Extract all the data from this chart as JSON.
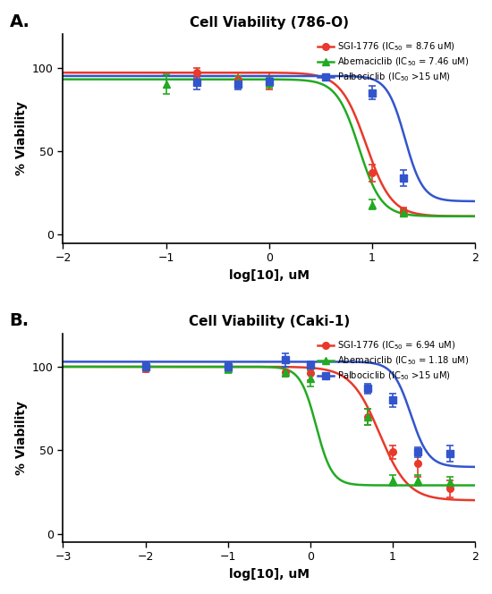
{
  "panel_A": {
    "title": "Cell Viability (786-O)",
    "xlim": [
      -2,
      2
    ],
    "ylim": [
      -5,
      120
    ],
    "xticks": [
      -2,
      -1,
      0,
      1,
      2
    ],
    "yticks": [
      0,
      50,
      100
    ],
    "xlabel": "log[10], uM",
    "ylabel": "% Viability",
    "series": [
      {
        "label": "SGI-1776 (IC$_{50}$ = 8.76 uM)",
        "color": "#e8392a",
        "marker": "o",
        "x": [
          -0.699,
          -0.301,
          0.0,
          1.0,
          1.301
        ],
        "y": [
          97,
          93,
          92,
          37,
          14
        ],
        "yerr": [
          3,
          4,
          5,
          5,
          2
        ],
        "log_ic50": 0.942,
        "hill": 3.5,
        "bottom": 11,
        "top": 97
      },
      {
        "label": "Abemaciclib (IC$_{50}$ = 7.46 uM)",
        "color": "#22aa22",
        "marker": "^",
        "x": [
          -1.0,
          -0.301,
          0.0,
          1.0,
          1.301
        ],
        "y": [
          90,
          92,
          91,
          18,
          13
        ],
        "yerr": [
          6,
          3,
          3,
          3,
          2
        ],
        "log_ic50": 0.873,
        "hill": 4.0,
        "bottom": 11,
        "top": 93
      },
      {
        "label": "Palbociclib (IC$_{50}$ >15 uM)",
        "color": "#3355cc",
        "marker": "s",
        "x": [
          -0.699,
          -0.301,
          0.0,
          1.0,
          1.301
        ],
        "y": [
          91,
          90,
          92,
          85,
          34
        ],
        "yerr": [
          4,
          3,
          3,
          4,
          5
        ],
        "log_ic50": 1.32,
        "hill": 5.0,
        "bottom": 20,
        "top": 95
      }
    ]
  },
  "panel_B": {
    "title": "Cell Viability (Caki-1)",
    "xlim": [
      -3,
      2
    ],
    "ylim": [
      -5,
      120
    ],
    "xticks": [
      -3,
      -2,
      -1,
      0,
      1,
      2
    ],
    "yticks": [
      0,
      50,
      100
    ],
    "xlabel": "log[10], uM",
    "ylabel": "% Viability",
    "series": [
      {
        "label": "SGI-1776 (IC$_{50}$ = 6.94 uM)",
        "color": "#e8392a",
        "marker": "o",
        "x": [
          -2.0,
          -1.0,
          -0.301,
          0.0,
          0.699,
          1.0,
          1.301,
          1.699
        ],
        "y": [
          99,
          99,
          97,
          96,
          70,
          49,
          42,
          27
        ],
        "yerr": [
          2,
          2,
          3,
          4,
          5,
          4,
          8,
          5
        ],
        "log_ic50": 0.841,
        "hill": 2.5,
        "bottom": 20,
        "top": 100
      },
      {
        "label": "Abemaciclib (IC$_{50}$ = 1.18 uM)",
        "color": "#22aa22",
        "marker": "^",
        "x": [
          -2.0,
          -1.0,
          -0.301,
          0.0,
          0.699,
          1.0,
          1.301,
          1.699
        ],
        "y": [
          100,
          99,
          97,
          93,
          70,
          32,
          32,
          31
        ],
        "yerr": [
          2,
          3,
          3,
          5,
          5,
          3,
          3,
          3
        ],
        "log_ic50": 0.072,
        "hill": 4.5,
        "bottom": 29,
        "top": 100
      },
      {
        "label": "Palbociclib (IC$_{50}$ >15 uM)",
        "color": "#3355cc",
        "marker": "s",
        "x": [
          -2.0,
          -1.0,
          -0.301,
          0.0,
          0.699,
          1.0,
          1.301,
          1.699
        ],
        "y": [
          100,
          100,
          104,
          101,
          87,
          80,
          49,
          48
        ],
        "yerr": [
          2,
          2,
          4,
          2,
          3,
          4,
          3,
          5
        ],
        "log_ic50": 1.22,
        "hill": 4.0,
        "bottom": 40,
        "top": 103
      }
    ]
  }
}
